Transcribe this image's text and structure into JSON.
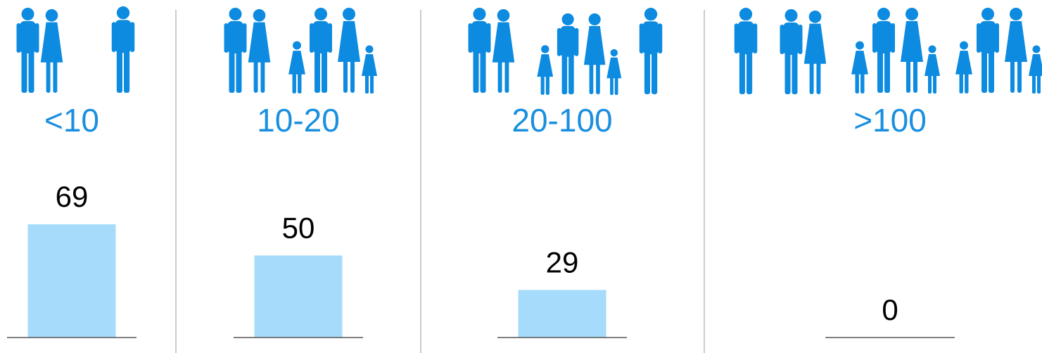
{
  "chart_data": {
    "type": "bar",
    "categories": [
      "<10",
      "10-20",
      "20-100",
      ">100"
    ],
    "values": [
      69,
      50,
      29,
      0
    ],
    "color": "#a6dbfb"
  }
}
